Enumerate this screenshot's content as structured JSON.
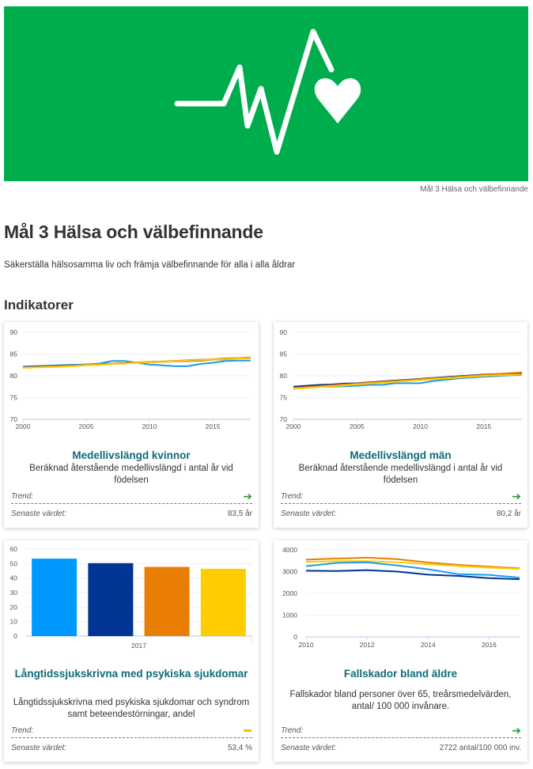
{
  "banner": {
    "background_color": "#00ad4d",
    "icon": "heartbeat-heart-icon",
    "caption": "Mål 3 Hälsa och välbefinnande"
  },
  "page": {
    "title": "Mål 3 Hälsa och välbefinnande",
    "subtitle": "Säkerställa hälsosamma liv och främja välbefinnande för alla i alla åldrar",
    "section_title": "Indikatorer"
  },
  "labels": {
    "trend": "Trend:",
    "latest": "Senaste värdet:"
  },
  "cards": [
    {
      "title": "Medellivslängd kvinnor",
      "description": "Beräknad återstående medellivslängd i antal år vid födelsen",
      "trend_icon": "arrow-right-icon",
      "trend_symbol": "➔",
      "latest_value": "83,5 år"
    },
    {
      "title": "Medellivslängd män",
      "description": "Beräknad återstående medellivslängd i antal år vid födelsen",
      "trend_icon": "arrow-right-icon",
      "trend_symbol": "➔",
      "latest_value": "80,2 år"
    },
    {
      "title": "Långtidssjukskrivna med psykiska sjukdomar",
      "description": "Långtidssjukskrivna med psykiska sjukdomar och syndrom samt beteendestörningar, andel",
      "trend_icon": "dash-neutral-icon",
      "latest_value": "53,4 %"
    },
    {
      "title": "Fallskador bland äldre",
      "description": "Fallskador bland personer över 65, treårsmedelvärden, antal/ 100 000 invånare.",
      "trend_icon": "arrow-right-icon",
      "trend_symbol": "➔",
      "latest_value": "2722 antal/100 000 inv."
    }
  ],
  "colors": {
    "series_light_blue": "#1a9bf0",
    "series_dark_blue": "#003594",
    "series_orange": "#e87e04",
    "series_yellow": "#ffcc00",
    "title_teal": "#0d6b7a",
    "trend_green": "#2e9a3a",
    "trend_yellow": "#f2c200"
  },
  "chart_data": [
    {
      "type": "line",
      "title": "Medellivslängd kvinnor",
      "x": [
        2000,
        2001,
        2002,
        2003,
        2004,
        2005,
        2006,
        2007,
        2008,
        2009,
        2010,
        2011,
        2012,
        2013,
        2014,
        2015,
        2016,
        2017,
        2018
      ],
      "xticks": [
        "2000",
        "2005",
        "2010",
        "2015"
      ],
      "yticks": [
        "70",
        "75",
        "80",
        "85",
        "90"
      ],
      "ylim": [
        70,
        90
      ],
      "grid": true,
      "legend": "none",
      "series": [
        {
          "name": "dark-blue",
          "color": "#003594",
          "values": [
            82.1,
            82.2,
            82.3,
            82.4,
            82.5,
            82.6,
            82.7,
            82.8,
            82.9,
            83.0,
            83.1,
            83.2,
            83.3,
            83.4,
            83.5,
            83.7,
            83.8,
            84.0,
            84.0
          ]
        },
        {
          "name": "light-blue",
          "color": "#1a9bf0",
          "values": [
            82.0,
            82.1,
            82.2,
            82.3,
            82.4,
            82.6,
            82.8,
            83.4,
            83.4,
            83.0,
            82.6,
            82.4,
            82.2,
            82.2,
            82.7,
            83.0,
            83.4,
            83.5,
            83.5
          ]
        },
        {
          "name": "orange",
          "color": "#e87e04",
          "values": [
            81.9,
            82.0,
            82.1,
            82.2,
            82.3,
            82.5,
            82.6,
            82.8,
            82.9,
            83.1,
            83.2,
            83.3,
            83.4,
            83.6,
            83.7,
            83.8,
            84.0,
            84.1,
            84.2
          ]
        },
        {
          "name": "yellow",
          "color": "#ffcc00",
          "values": [
            81.8,
            81.9,
            82.0,
            82.1,
            82.2,
            82.4,
            82.5,
            82.7,
            82.8,
            83.0,
            83.1,
            83.2,
            83.3,
            83.5,
            83.6,
            83.7,
            83.8,
            84.0,
            84.0
          ]
        }
      ]
    },
    {
      "type": "line",
      "title": "Medellivslängd män",
      "x": [
        2000,
        2001,
        2002,
        2003,
        2004,
        2005,
        2006,
        2007,
        2008,
        2009,
        2010,
        2011,
        2012,
        2013,
        2014,
        2015,
        2016,
        2017,
        2018
      ],
      "xticks": [
        "2000",
        "2005",
        "2010",
        "2015"
      ],
      "yticks": [
        "70",
        "75",
        "80",
        "85",
        "90"
      ],
      "ylim": [
        70,
        90
      ],
      "grid": true,
      "legend": "none",
      "series": [
        {
          "name": "dark-blue",
          "color": "#003594",
          "values": [
            77.5,
            77.7,
            77.9,
            78.0,
            78.2,
            78.3,
            78.5,
            78.7,
            78.9,
            79.1,
            79.3,
            79.5,
            79.7,
            79.9,
            80.1,
            80.3,
            80.4,
            80.5,
            80.6
          ]
        },
        {
          "name": "light-blue",
          "color": "#1a9bf0",
          "values": [
            77.2,
            77.3,
            77.5,
            77.5,
            77.6,
            77.7,
            77.9,
            77.9,
            78.3,
            78.3,
            78.3,
            78.8,
            79.1,
            79.4,
            79.6,
            79.8,
            79.9,
            80.1,
            80.2
          ]
        },
        {
          "name": "orange",
          "color": "#e87e04",
          "values": [
            77.2,
            77.4,
            77.6,
            77.8,
            78.0,
            78.2,
            78.4,
            78.6,
            78.8,
            79.0,
            79.2,
            79.4,
            79.6,
            79.8,
            80.0,
            80.2,
            80.4,
            80.6,
            80.8
          ]
        },
        {
          "name": "yellow",
          "color": "#ffcc00",
          "values": [
            77.0,
            77.2,
            77.4,
            77.6,
            77.8,
            78.0,
            78.2,
            78.4,
            78.6,
            78.8,
            79.0,
            79.2,
            79.4,
            79.6,
            79.8,
            80.0,
            80.1,
            80.2,
            80.3
          ]
        }
      ]
    },
    {
      "type": "bar",
      "title": "Långtidssjukskrivna med psykiska sjukdomar",
      "categories": [
        "2017"
      ],
      "yticks": [
        "0",
        "10",
        "20",
        "30",
        "40",
        "50",
        "60"
      ],
      "ylim": [
        0,
        60
      ],
      "grid": true,
      "legend": "none",
      "series": [
        {
          "name": "light-blue",
          "color": "#0099ff",
          "values": [
            53.4
          ]
        },
        {
          "name": "dark-blue",
          "color": "#003594",
          "values": [
            50.3
          ]
        },
        {
          "name": "orange",
          "color": "#e87e04",
          "values": [
            47.7
          ]
        },
        {
          "name": "yellow",
          "color": "#ffcc00",
          "values": [
            46.4
          ]
        }
      ]
    },
    {
      "type": "line",
      "title": "Fallskador bland äldre",
      "x": [
        2010,
        2011,
        2012,
        2013,
        2014,
        2015,
        2016,
        2017
      ],
      "xticks": [
        "2010",
        "2012",
        "2014",
        "2016"
      ],
      "yticks": [
        "0",
        "1000",
        "2000",
        "3000",
        "4000"
      ],
      "ylim": [
        0,
        4000
      ],
      "grid": true,
      "legend": "none",
      "series": [
        {
          "name": "orange",
          "color": "#e87e04",
          "values": [
            3550,
            3600,
            3640,
            3570,
            3420,
            3310,
            3230,
            3150
          ]
        },
        {
          "name": "yellow",
          "color": "#ffcc00",
          "values": [
            3450,
            3480,
            3480,
            3430,
            3340,
            3260,
            3180,
            3120
          ]
        },
        {
          "name": "light-blue",
          "color": "#1a9bf0",
          "values": [
            3250,
            3400,
            3430,
            3280,
            3110,
            2880,
            2850,
            2722
          ]
        },
        {
          "name": "dark-blue",
          "color": "#003594",
          "values": [
            3040,
            3030,
            3070,
            3000,
            2860,
            2800,
            2700,
            2650
          ]
        }
      ]
    }
  ]
}
